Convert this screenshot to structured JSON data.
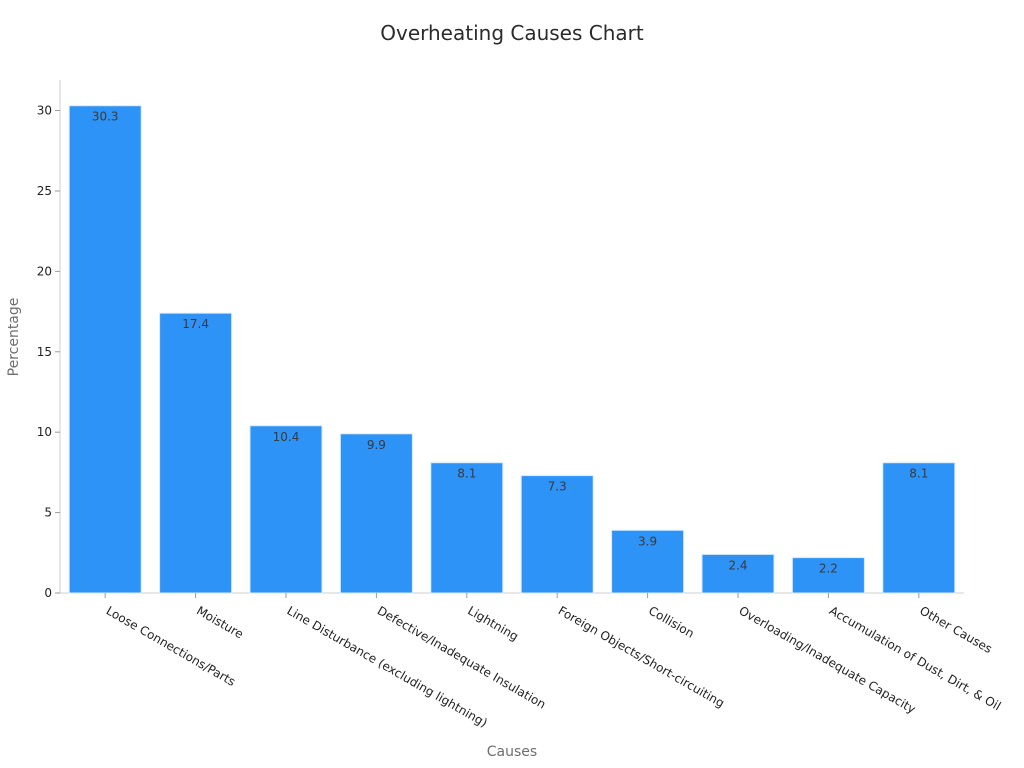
{
  "chart_data": {
    "type": "bar",
    "title": "Overheating Causes Chart",
    "xlabel": "Causes",
    "ylabel": "Percentage",
    "categories": [
      "Loose Connections/Parts",
      "Moisture",
      "Line Disturbance (excluding lightning)",
      "Defective/Inadequate Insulation",
      "Lightning",
      "Foreign Objects/Short-circuiting",
      "Collision",
      "Overloading/Inadequate Capacity",
      "Accumulation of Dust, Dirt, & Oil",
      "Other Causes"
    ],
    "values": [
      30.3,
      17.4,
      10.4,
      9.9,
      8.1,
      7.3,
      3.9,
      2.4,
      2.2,
      8.1
    ],
    "data_labels": [
      "30.3",
      "17.4",
      "10.4",
      "9.9",
      "8.1",
      "7.3",
      "3.9",
      "2.4",
      "2.2",
      "8.1"
    ],
    "yticks": [
      0,
      5,
      10,
      15,
      20,
      25,
      30
    ],
    "ylim": [
      0,
      31.9
    ],
    "grid": false,
    "bar_color": "#2e93f7",
    "bar_edge_color": "#d6e9ff"
  }
}
